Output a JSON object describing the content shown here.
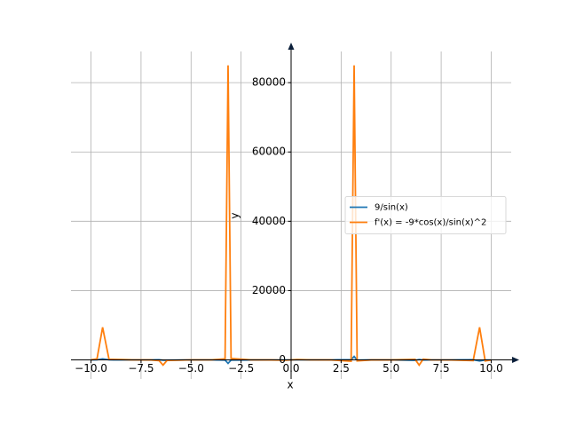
{
  "chart_data": {
    "type": "line",
    "x_label": "x",
    "y_label": "y",
    "x": [
      -10,
      -9.7,
      -9.42,
      -9.1,
      -8,
      -7,
      -6.6,
      -6.4,
      -6.2,
      -5,
      -4,
      -3.3,
      -3.15,
      -3,
      -2,
      -1,
      -0.3,
      0.3,
      1,
      2,
      3,
      3.15,
      3.3,
      4,
      5,
      6.2,
      6.4,
      6.6,
      7,
      8,
      9.1,
      9.42,
      9.7,
      10
    ],
    "series": [
      {
        "name": "9/sin(x)",
        "color": "#1f77b4",
        "values": [
          17,
          50,
          300,
          30,
          9,
          14,
          30,
          -100,
          -110,
          9,
          12,
          -57,
          -1000,
          -64,
          -10,
          -11,
          -30,
          30,
          11,
          10,
          64,
          1000,
          -57,
          -12,
          -9,
          -110,
          100,
          -30,
          14,
          9,
          30,
          -300,
          -35,
          -17
        ]
      },
      {
        "name": "f'(x) = -9*cos(x)/sin(x)^2",
        "color": "#ff7f0e",
        "values": [
          25,
          300,
          9400,
          200,
          20,
          -10,
          -200,
          -1500,
          -150,
          5,
          12,
          300,
          85000,
          400,
          5,
          -15,
          -100,
          100,
          15,
          -5,
          -400,
          85000,
          -300,
          -12,
          -5,
          150,
          -1500,
          200,
          10,
          -20,
          -200,
          9400,
          -300,
          -25
        ]
      }
    ],
    "xlim": [
      -11,
      11
    ],
    "ylim": [
      -5500,
      89000
    ],
    "xticks": [
      {
        "value": -10,
        "label": "−10.0"
      },
      {
        "value": -7.5,
        "label": "−7.5"
      },
      {
        "value": -5,
        "label": "−5.0"
      },
      {
        "value": -2.5,
        "label": "−2.5"
      },
      {
        "value": 0,
        "label": "0.0"
      },
      2.5,
      {
        "value": 5,
        "label": "5.0"
      },
      7.5,
      {
        "value": 10,
        "label": "10.0"
      }
    ],
    "yticks": [
      0,
      20000,
      40000,
      60000,
      80000
    ],
    "grid": true,
    "legend": "right"
  }
}
